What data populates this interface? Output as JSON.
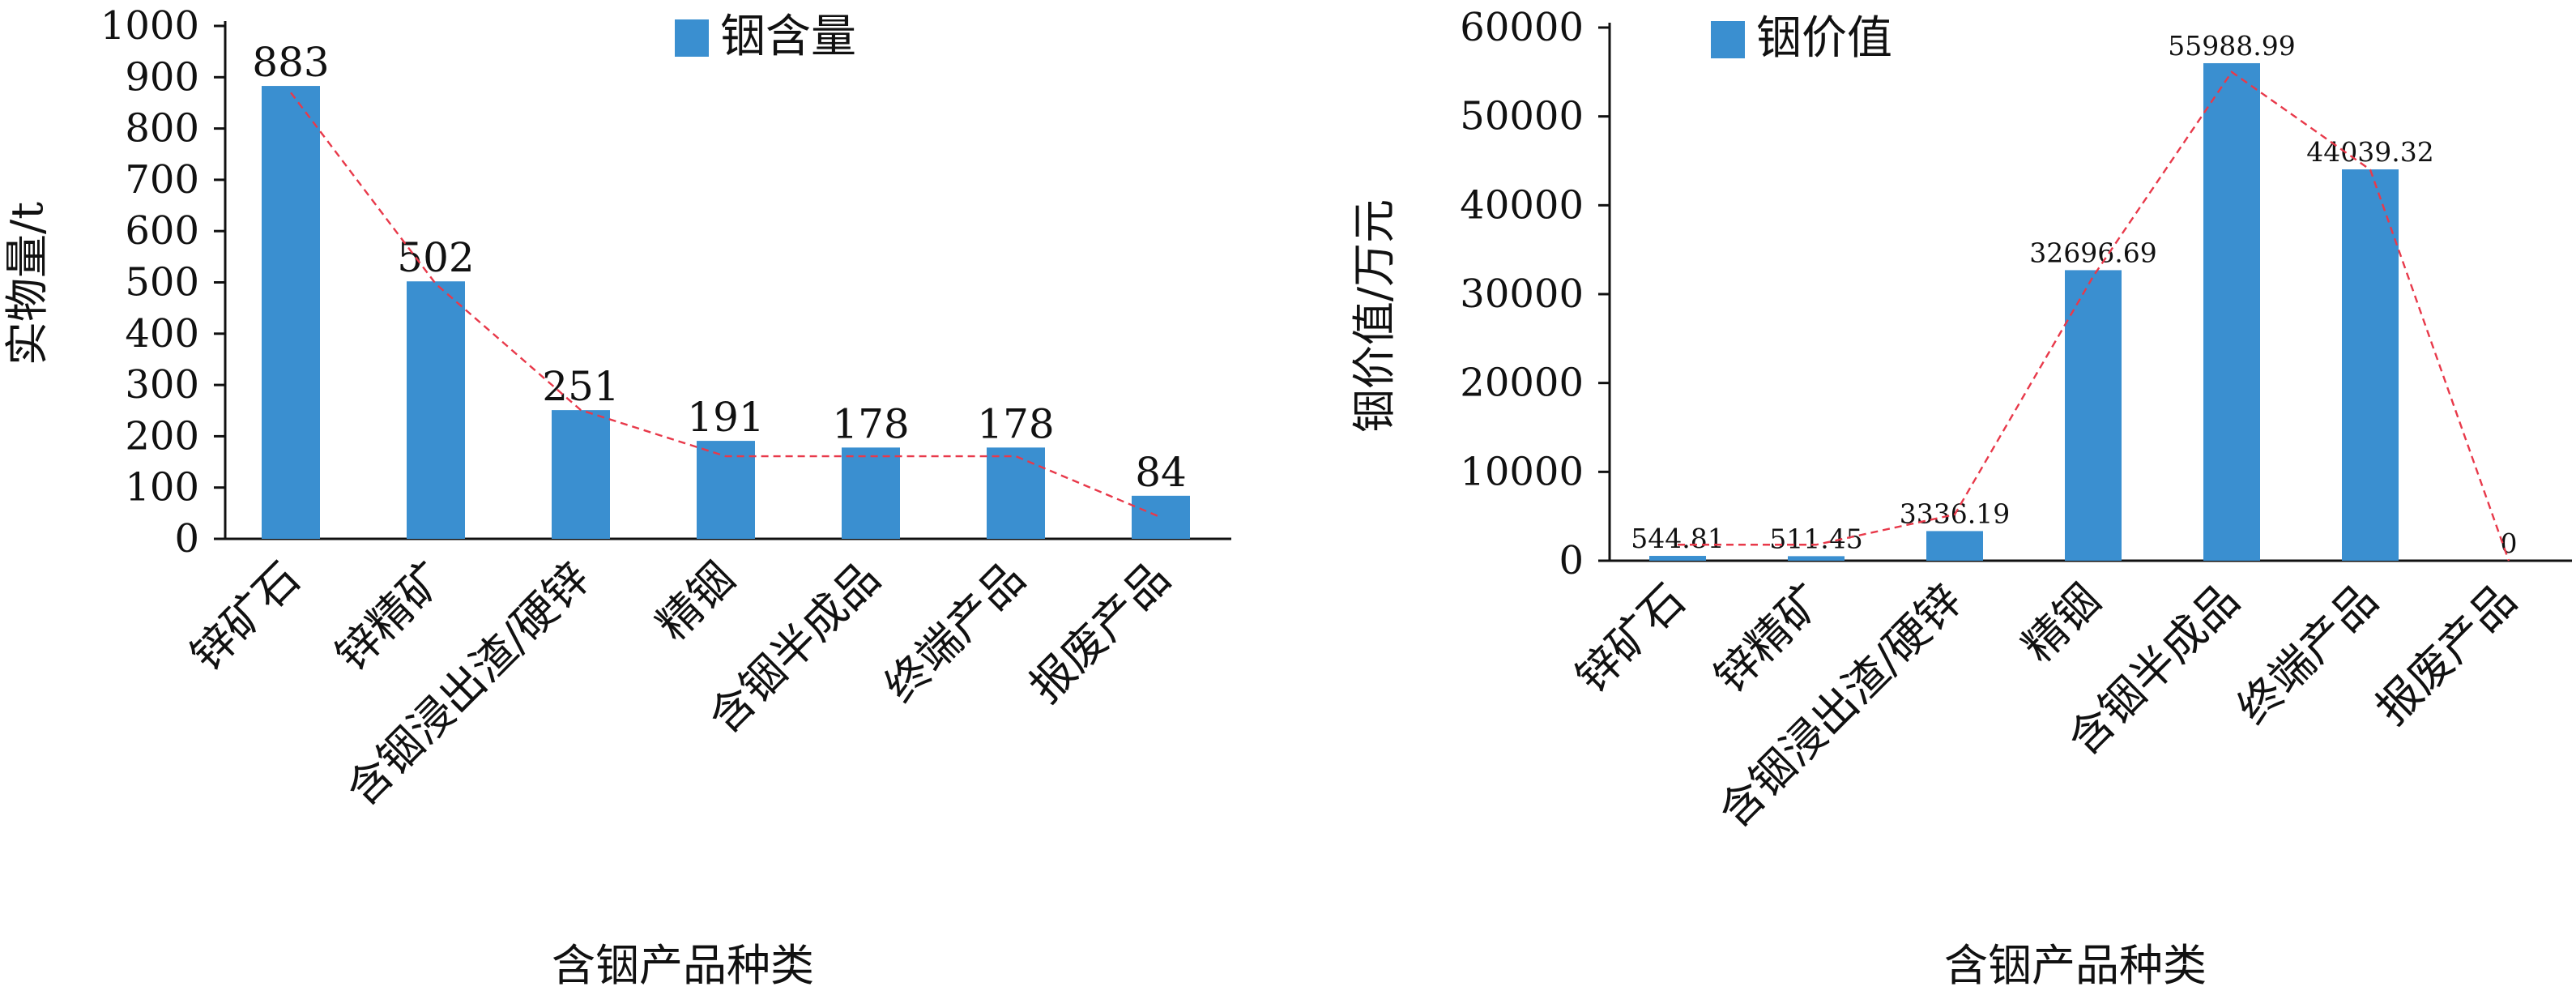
{
  "chart_data": [
    {
      "type": "bar",
      "categories": [
        "锌矿石",
        "锌精矿",
        "含铟浸出渣/硬锌",
        "精铟",
        "含铟半成品",
        "终端产品",
        "报废产品"
      ],
      "series": [
        {
          "name": "铟含量",
          "values": [
            883,
            502,
            251,
            191,
            178,
            178,
            84
          ],
          "labels": [
            "883",
            "502",
            "251",
            "191",
            "178",
            "178",
            "84"
          ]
        }
      ],
      "xlabel": "含铟产品种类",
      "ylabel": "实物量/t",
      "ylim": [
        0,
        1000
      ],
      "yticks": [
        0,
        100,
        200,
        300,
        400,
        500,
        600,
        700,
        800,
        900,
        1000
      ],
      "trend_line": [
        870,
        497,
        251,
        161,
        161,
        161,
        42
      ],
      "legend_position": "top-center",
      "grid": false
    },
    {
      "type": "bar",
      "categories": [
        "锌矿石",
        "锌精矿",
        "含铟浸出渣/硬锌",
        "精铟",
        "含铟半成品",
        "终端产品",
        "报废产品"
      ],
      "series": [
        {
          "name": "铟价值",
          "values": [
            544.81,
            511.45,
            3336.19,
            32696.69,
            55988.99,
            44039.32,
            0
          ],
          "labels": [
            "544.81",
            "511.45",
            "3336.19",
            "32696.69",
            "55988.99",
            "44039.32",
            "0"
          ]
        }
      ],
      "xlabel": "含铟产品种类",
      "ylabel": "铟价值/万元",
      "ylim": [
        0,
        60000
      ],
      "yticks": [
        0,
        10000,
        20000,
        30000,
        40000,
        50000,
        60000
      ],
      "trend_line": [
        1800,
        1800,
        5200,
        32000,
        55000,
        44000,
        0
      ],
      "legend_position": "top-left",
      "grid": false
    }
  ],
  "colors": {
    "bar": "#3a8fd0",
    "trend": "#e8394a",
    "axis": "#111111"
  }
}
